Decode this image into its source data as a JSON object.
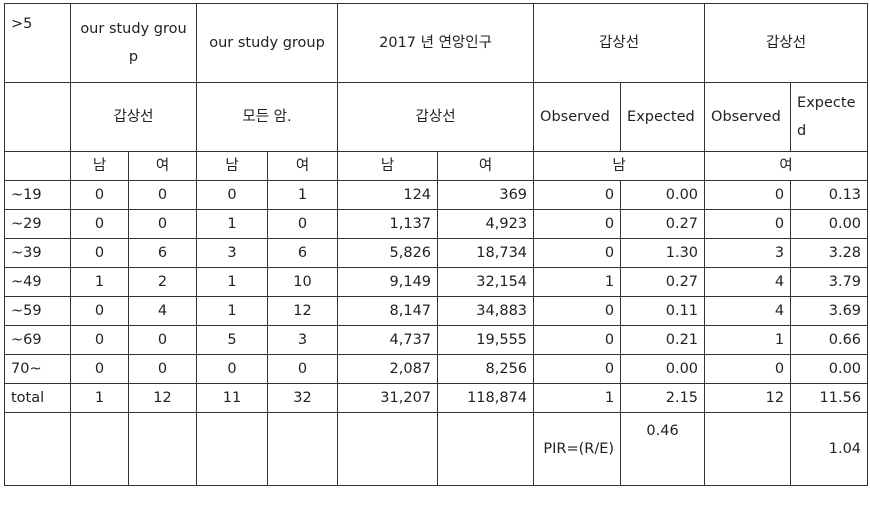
{
  "header": {
    "corner": ">5",
    "group1": "our study group",
    "group2": "our study group",
    "pop": "2017 년  연앙인구",
    "obs1": "갑상선",
    "obs2": "갑상선",
    "sub_group1": "갑상선",
    "sub_group2": "모든 암.",
    "sub_pop": "갑상선",
    "observed1": "Observed",
    "expected1": "Expected",
    "observed2": "Observed",
    "expected2": "Expected",
    "male": "남",
    "female": "여"
  },
  "rows": [
    {
      "age": "~19",
      "c": [
        "0",
        "0",
        "0",
        "1",
        "124",
        "369",
        "0",
        "0.00",
        "0",
        "0.13"
      ]
    },
    {
      "age": "~29",
      "c": [
        "0",
        "0",
        "1",
        "0",
        "1,137",
        "4,923",
        "0",
        "0.27",
        "0",
        "0.00"
      ]
    },
    {
      "age": "~39",
      "c": [
        "0",
        "6",
        "3",
        "6",
        "5,826",
        "18,734",
        "0",
        "1.30",
        "3",
        "3.28"
      ]
    },
    {
      "age": "~49",
      "c": [
        "1",
        "2",
        "1",
        "10",
        "9,149",
        "32,154",
        "1",
        "0.27",
        "4",
        "3.79"
      ]
    },
    {
      "age": "~59",
      "c": [
        "0",
        "4",
        "1",
        "12",
        "8,147",
        "34,883",
        "0",
        "0.11",
        "4",
        "3.69"
      ]
    },
    {
      "age": "~69",
      "c": [
        "0",
        "0",
        "5",
        "3",
        "4,737",
        "19,555",
        "0",
        "0.21",
        "1",
        "0.66"
      ]
    },
    {
      "age": "70~",
      "c": [
        "0",
        "0",
        "0",
        "0",
        "2,087",
        "8,256",
        "0",
        "0.00",
        "0",
        "0.00"
      ]
    },
    {
      "age": "total",
      "c": [
        "1",
        "12",
        "11",
        "32",
        "31,207",
        "118,874",
        "1",
        "2.15",
        "12",
        "11.56"
      ]
    }
  ],
  "pir": {
    "label": "PIR=(R/E)",
    "male_value": "0.46",
    "female_value": "1.04"
  }
}
